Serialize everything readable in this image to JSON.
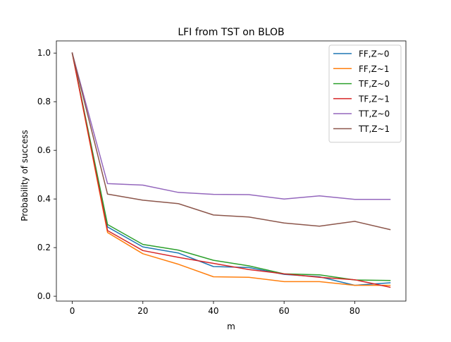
{
  "chart_data": {
    "type": "line",
    "title": "LFI from TST on BLOB",
    "xlabel": "m",
    "ylabel": "Probability of success",
    "xlim": [
      -4.5,
      94.5
    ],
    "ylim": [
      -0.02,
      1.05
    ],
    "xticks": [
      0,
      20,
      40,
      60,
      80
    ],
    "yticks": [
      0.0,
      0.2,
      0.4,
      0.6,
      0.8,
      1.0
    ],
    "grid": false,
    "legend_position": "top-right",
    "x": [
      0,
      10,
      20,
      30,
      40,
      50,
      60,
      70,
      80,
      90
    ],
    "series": [
      {
        "name": "FF,Z~0",
        "color": "#1f77b4",
        "values": [
          1.0,
          0.285,
          0.203,
          0.178,
          0.122,
          0.118,
          0.09,
          0.08,
          0.045,
          0.055
        ]
      },
      {
        "name": "FF,Z~1",
        "color": "#ff7f0e",
        "values": [
          1.0,
          0.262,
          0.175,
          0.132,
          0.08,
          0.078,
          0.06,
          0.06,
          0.045,
          0.045
        ]
      },
      {
        "name": "TF,Z~0",
        "color": "#2ca02c",
        "values": [
          1.0,
          0.295,
          0.213,
          0.19,
          0.148,
          0.125,
          0.092,
          0.088,
          0.067,
          0.065
        ]
      },
      {
        "name": "TF,Z~1",
        "color": "#d62728",
        "values": [
          1.0,
          0.27,
          0.188,
          0.16,
          0.135,
          0.11,
          0.092,
          0.078,
          0.068,
          0.037
        ]
      },
      {
        "name": "TT,Z~0",
        "color": "#9467bd",
        "values": [
          1.0,
          0.463,
          0.457,
          0.427,
          0.419,
          0.418,
          0.4,
          0.413,
          0.398,
          0.398
        ]
      },
      {
        "name": "TT,Z~1",
        "color": "#8c564b",
        "values": [
          1.0,
          0.42,
          0.395,
          0.381,
          0.334,
          0.326,
          0.301,
          0.288,
          0.308,
          0.274
        ]
      }
    ]
  }
}
